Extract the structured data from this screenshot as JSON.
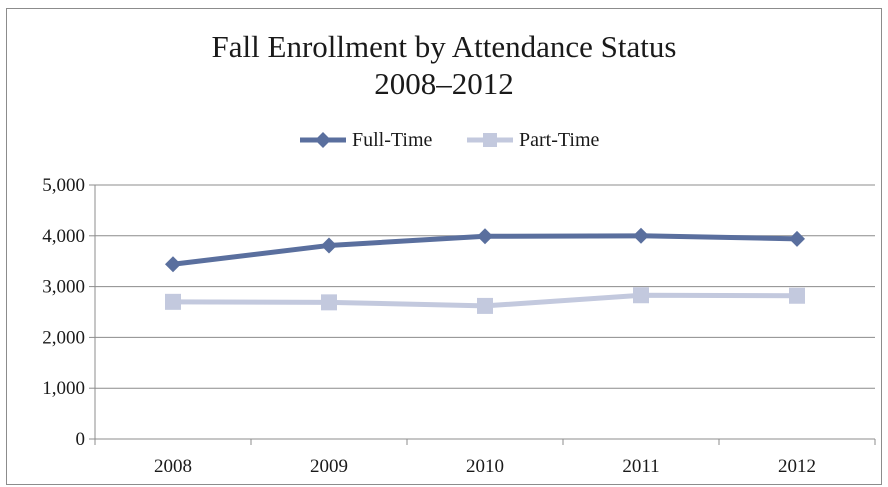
{
  "chart_data": {
    "type": "line",
    "title": [
      "Fall Enrollment by Attendance Status",
      "2008–2012"
    ],
    "categories": [
      "2008",
      "2009",
      "2010",
      "2011",
      "2012"
    ],
    "series": [
      {
        "name": "Full-Time",
        "values": [
          3440,
          3810,
          3990,
          4000,
          3940
        ],
        "color": "#5a6f9e",
        "marker": "diamond"
      },
      {
        "name": "Part-Time",
        "values": [
          2700,
          2690,
          2620,
          2830,
          2820
        ],
        "color": "#c3c9de",
        "marker": "square"
      }
    ],
    "ylim": [
      0,
      5000
    ],
    "yticks": [
      0,
      1000,
      2000,
      3000,
      4000,
      5000
    ],
    "ytick_labels": [
      "0",
      "1,000",
      "2,000",
      "3,000",
      "4,000",
      "5,000"
    ],
    "grid": true,
    "legend_position": "top-center"
  }
}
